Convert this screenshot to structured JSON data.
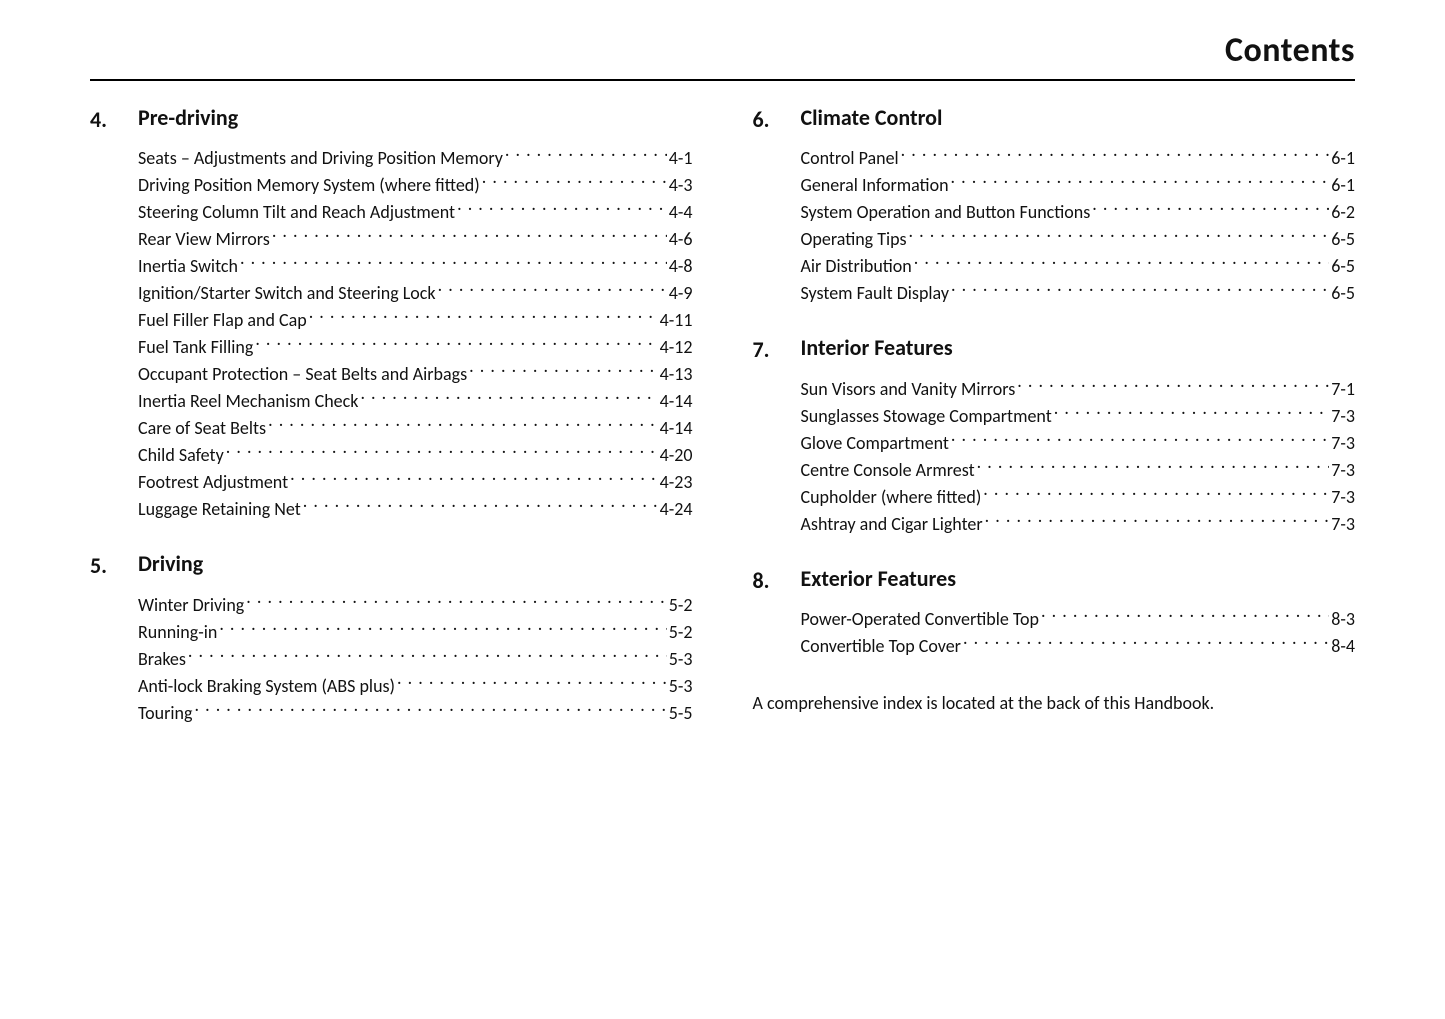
{
  "page_title": "Contents",
  "footnote": "A comprehensive index is located at the back of this Handbook.",
  "left_sections": [
    {
      "number": "4.",
      "title": "Pre-driving",
      "entries": [
        {
          "label": "Seats – Adjustments and Driving Position Memory",
          "page": "4-1"
        },
        {
          "label": "Driving Position Memory System (where fitted)",
          "page": "4-3"
        },
        {
          "label": "Steering Column Tilt and Reach Adjustment",
          "page": "4-4"
        },
        {
          "label": "Rear View Mirrors",
          "page": "4-6"
        },
        {
          "label": "Inertia Switch",
          "page": "4-8"
        },
        {
          "label": "Ignition/Starter Switch and Steering Lock",
          "page": "4-9"
        },
        {
          "label": "Fuel Filler Flap and Cap",
          "page": "4-11"
        },
        {
          "label": "Fuel Tank Filling",
          "page": "4-12"
        },
        {
          "label": "Occupant Protection – Seat Belts and Airbags",
          "page": "4-13"
        },
        {
          "label": "Inertia Reel Mechanism Check",
          "page": "4-14"
        },
        {
          "label": "Care of Seat Belts",
          "page": "4-14"
        },
        {
          "label": "Child Safety",
          "page": "4-20"
        },
        {
          "label": "Footrest Adjustment",
          "page": "4-23"
        },
        {
          "label": "Luggage Retaining Net",
          "page": "4-24"
        }
      ]
    },
    {
      "number": "5.",
      "title": "Driving",
      "entries": [
        {
          "label": "Winter Driving",
          "page": "5-2"
        },
        {
          "label": "Running-in",
          "page": "5-2"
        },
        {
          "label": "Brakes",
          "page": "5-3"
        },
        {
          "label": "Anti-lock Braking System (ABS plus)",
          "page": "5-3"
        },
        {
          "label": "Touring",
          "page": "5-5"
        }
      ]
    }
  ],
  "right_sections": [
    {
      "number": "6.",
      "title": "Climate Control",
      "entries": [
        {
          "label": "Control Panel",
          "page": "6-1"
        },
        {
          "label": "General Information",
          "page": "6-1"
        },
        {
          "label": "System Operation and Button Functions",
          "page": "6-2"
        },
        {
          "label": "Operating Tips",
          "page": "6-5"
        },
        {
          "label": "Air Distribution",
          "page": "6-5"
        },
        {
          "label": "System Fault Display",
          "page": "6-5"
        }
      ]
    },
    {
      "number": "7.",
      "title": "Interior Features",
      "entries": [
        {
          "label": "Sun Visors and Vanity Mirrors",
          "page": "7-1"
        },
        {
          "label": "Sunglasses Stowage Compartment",
          "page": "7-3"
        },
        {
          "label": "Glove Compartment",
          "page": "7-3"
        },
        {
          "label": "Centre Console Armrest",
          "page": "7-3"
        },
        {
          "label": "Cupholder (where fitted)",
          "page": "7-3"
        },
        {
          "label": "Ashtray and Cigar Lighter",
          "page": "7-3"
        }
      ]
    },
    {
      "number": "8.",
      "title": "Exterior Features",
      "entries": [
        {
          "label": "Power-Operated Convertible Top",
          "page": "8-3"
        },
        {
          "label": "Convertible Top Cover",
          "page": "8-4"
        }
      ]
    }
  ]
}
